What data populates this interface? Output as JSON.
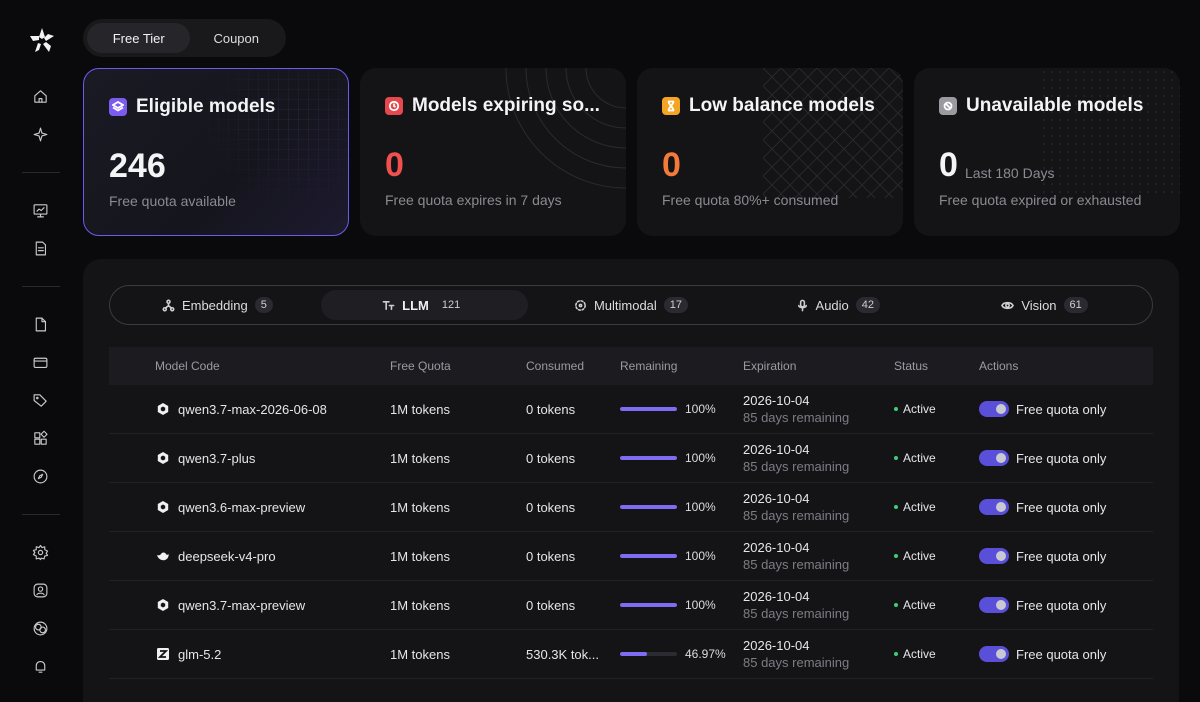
{
  "top_tabs": [
    {
      "label": "Free Tier",
      "active": true
    },
    {
      "label": "Coupon",
      "active": false
    }
  ],
  "cards": [
    {
      "title": "Eligible models",
      "value": "246",
      "subtitle": "Free quota available",
      "icon": "layers-icon",
      "icon_color": "#7c5cf0",
      "value_color": "#f4f4f6"
    },
    {
      "title": "Models expiring so...",
      "value": "0",
      "subtitle": "Free quota expires in 7 days",
      "icon": "clock-icon",
      "icon_color": "#e5484d",
      "value_color": "#f0514f"
    },
    {
      "title": "Low balance models",
      "value": "0",
      "subtitle": "Free quota 80%+ consumed",
      "icon": "hourglass-icon",
      "icon_color": "#f5a524",
      "value_color": "#f47a3a"
    },
    {
      "title": "Unavailable models",
      "value": "0",
      "note": "Last 180 Days",
      "subtitle": "Free quota expired or exhausted",
      "icon": "block-icon",
      "icon_color": "#9a9aa0",
      "value_color": "#f4f4f6"
    }
  ],
  "categories": [
    {
      "label": "Embedding",
      "count": "5",
      "icon": "graph-icon",
      "active": false
    },
    {
      "label": "LLM",
      "count": "121",
      "icon": "text-icon",
      "active": true
    },
    {
      "label": "Multimodal",
      "count": "17",
      "icon": "multimodal-icon",
      "active": false
    },
    {
      "label": "Audio",
      "count": "42",
      "icon": "microphone-icon",
      "active": false
    },
    {
      "label": "Vision",
      "count": "61",
      "icon": "eye-icon",
      "active": false
    }
  ],
  "table": {
    "headers": {
      "model": "Model Code",
      "quota": "Free Quota",
      "consumed": "Consumed",
      "remaining": "Remaining",
      "expiration": "Expiration",
      "status": "Status",
      "actions": "Actions"
    },
    "rows": [
      {
        "model": "qwen3.7-max-2026-06-08",
        "icon": "qwen-icon",
        "quota": "1M tokens",
        "consumed": "0 tokens",
        "remaining_pct": 100,
        "remaining_label": "100%",
        "exp_date": "2026-10-04",
        "exp_days": "85 days remaining",
        "status": "Active",
        "action": "Free quota only"
      },
      {
        "model": "qwen3.7-plus",
        "icon": "qwen-icon",
        "quota": "1M tokens",
        "consumed": "0 tokens",
        "remaining_pct": 100,
        "remaining_label": "100%",
        "exp_date": "2026-10-04",
        "exp_days": "85 days remaining",
        "status": "Active",
        "action": "Free quota only"
      },
      {
        "model": "qwen3.6-max-preview",
        "icon": "qwen-icon",
        "quota": "1M tokens",
        "consumed": "0 tokens",
        "remaining_pct": 100,
        "remaining_label": "100%",
        "exp_date": "2026-10-04",
        "exp_days": "85 days remaining",
        "status": "Active",
        "action": "Free quota only"
      },
      {
        "model": "deepseek-v4-pro",
        "icon": "deepseek-icon",
        "quota": "1M tokens",
        "consumed": "0 tokens",
        "remaining_pct": 100,
        "remaining_label": "100%",
        "exp_date": "2026-10-04",
        "exp_days": "85 days remaining",
        "status": "Active",
        "action": "Free quota only"
      },
      {
        "model": "qwen3.7-max-preview",
        "icon": "qwen-icon",
        "quota": "1M tokens",
        "consumed": "0 tokens",
        "remaining_pct": 100,
        "remaining_label": "100%",
        "exp_date": "2026-10-04",
        "exp_days": "85 days remaining",
        "status": "Active",
        "action": "Free quota only"
      },
      {
        "model": "glm-5.2",
        "icon": "zhipu-icon",
        "quota": "1M tokens",
        "consumed": "530.3K tok...",
        "remaining_pct": 46.97,
        "remaining_label": "46.97%",
        "exp_date": "2026-10-04",
        "exp_days": "85 days remaining",
        "status": "Active",
        "action": "Free quota only"
      }
    ]
  }
}
